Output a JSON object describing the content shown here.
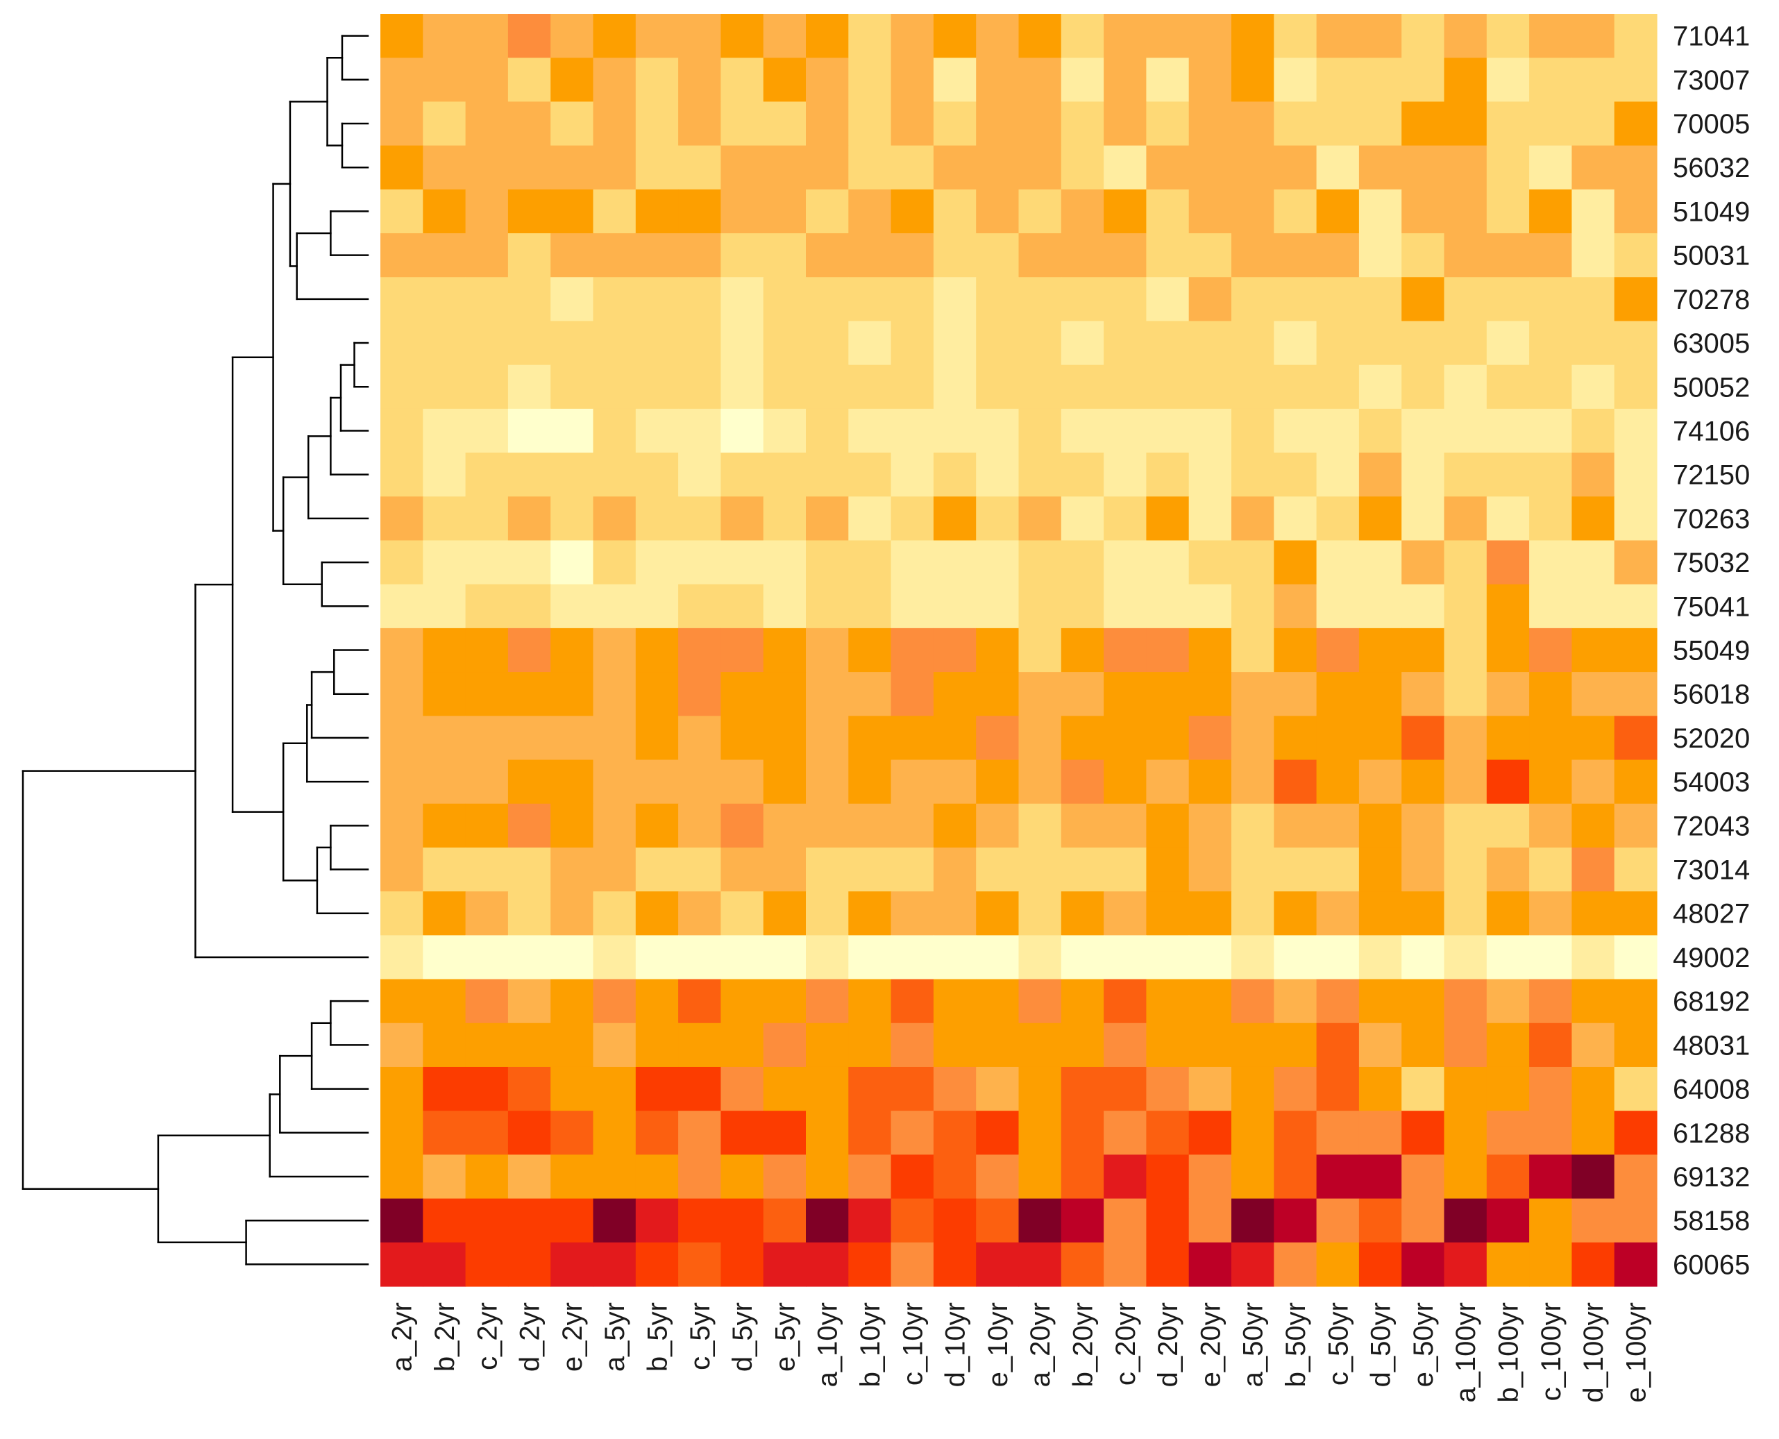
{
  "chart_data": {
    "type": "heatmap",
    "title": "",
    "xlabel": "",
    "ylabel": "",
    "grid": false,
    "legend": "none",
    "row_dendrogram": true,
    "palette": {
      "1": "#ffffcc",
      "2": "#ffeda0",
      "3": "#fed976",
      "4": "#feb24c",
      "5": "#fd9f00",
      "6": "#fd8d3c",
      "7": "#fc6010",
      "8": "#fc3c00",
      "9": "#e31a1c",
      "10": "#bd0026",
      "11": "#800026"
    },
    "columns": [
      "a_2yr",
      "b_2yr",
      "c_2yr",
      "d_2yr",
      "e_2yr",
      "a_5yr",
      "b_5yr",
      "c_5yr",
      "d_5yr",
      "e_5yr",
      "a_10yr",
      "b_10yr",
      "c_10yr",
      "d_10yr",
      "e_10yr",
      "a_20yr",
      "b_20yr",
      "c_20yr",
      "d_20yr",
      "e_20yr",
      "a_50yr",
      "b_50yr",
      "c_50yr",
      "d_50yr",
      "e_50yr",
      "a_100yr",
      "b_100yr",
      "c_100yr",
      "d_100yr",
      "e_100yr"
    ],
    "rows": [
      "71041",
      "73007",
      "70005",
      "56032",
      "51049",
      "50031",
      "70278",
      "63005",
      "50052",
      "74106",
      "72150",
      "70263",
      "75032",
      "75041",
      "55049",
      "56018",
      "52020",
      "54003",
      "72043",
      "73014",
      "48027",
      "49002",
      "68192",
      "48031",
      "64008",
      "61288",
      "69132",
      "58158",
      "60065"
    ],
    "values": [
      [
        5,
        4,
        4,
        6,
        4,
        5,
        4,
        4,
        5,
        4,
        5,
        3,
        4,
        5,
        4,
        5,
        3,
        4,
        4,
        4,
        5,
        3,
        4,
        4,
        3,
        4,
        3,
        4,
        4,
        3
      ],
      [
        4,
        4,
        4,
        3,
        5,
        4,
        3,
        4,
        3,
        5,
        4,
        3,
        4,
        2,
        4,
        4,
        2,
        4,
        2,
        4,
        5,
        2,
        3,
        3,
        3,
        5,
        2,
        3,
        3,
        3
      ],
      [
        4,
        3,
        4,
        4,
        3,
        4,
        3,
        4,
        3,
        3,
        4,
        3,
        4,
        3,
        4,
        4,
        3,
        4,
        3,
        4,
        4,
        3,
        3,
        3,
        5,
        5,
        3,
        3,
        3,
        5
      ],
      [
        5,
        4,
        4,
        4,
        4,
        4,
        3,
        3,
        4,
        4,
        4,
        3,
        3,
        4,
        4,
        4,
        3,
        2,
        4,
        4,
        4,
        4,
        2,
        4,
        4,
        4,
        3,
        2,
        4,
        4
      ],
      [
        3,
        5,
        4,
        5,
        5,
        3,
        5,
        5,
        4,
        4,
        3,
        4,
        5,
        3,
        4,
        3,
        4,
        5,
        3,
        4,
        4,
        3,
        5,
        2,
        4,
        4,
        3,
        5,
        2,
        4
      ],
      [
        4,
        4,
        4,
        3,
        4,
        4,
        4,
        4,
        3,
        3,
        4,
        4,
        4,
        3,
        3,
        4,
        4,
        4,
        3,
        3,
        4,
        4,
        4,
        2,
        3,
        4,
        4,
        4,
        2,
        3
      ],
      [
        3,
        3,
        3,
        3,
        2,
        3,
        3,
        3,
        2,
        3,
        3,
        3,
        3,
        2,
        3,
        3,
        3,
        3,
        2,
        4,
        3,
        3,
        3,
        3,
        5,
        3,
        3,
        3,
        3,
        5
      ],
      [
        3,
        3,
        3,
        3,
        3,
        3,
        3,
        3,
        2,
        3,
        3,
        2,
        3,
        2,
        3,
        3,
        2,
        3,
        3,
        3,
        3,
        2,
        3,
        3,
        3,
        3,
        2,
        3,
        3,
        3
      ],
      [
        3,
        3,
        3,
        2,
        3,
        3,
        3,
        3,
        2,
        3,
        3,
        3,
        3,
        2,
        3,
        3,
        3,
        3,
        3,
        3,
        3,
        3,
        3,
        2,
        3,
        2,
        3,
        3,
        2,
        3
      ],
      [
        3,
        2,
        2,
        1,
        1,
        3,
        2,
        2,
        1,
        2,
        3,
        2,
        2,
        2,
        2,
        3,
        2,
        2,
        2,
        2,
        3,
        2,
        2,
        3,
        2,
        2,
        2,
        2,
        3,
        2
      ],
      [
        3,
        2,
        3,
        3,
        3,
        3,
        3,
        2,
        3,
        3,
        3,
        3,
        2,
        3,
        2,
        3,
        3,
        2,
        3,
        2,
        3,
        3,
        2,
        4,
        2,
        3,
        3,
        3,
        4,
        2
      ],
      [
        4,
        3,
        3,
        4,
        3,
        4,
        3,
        3,
        4,
        3,
        4,
        2,
        3,
        5,
        3,
        4,
        2,
        3,
        5,
        2,
        4,
        2,
        3,
        5,
        2,
        4,
        2,
        3,
        5,
        2
      ],
      [
        3,
        2,
        2,
        2,
        1,
        3,
        2,
        2,
        2,
        2,
        3,
        3,
        2,
        2,
        2,
        3,
        3,
        2,
        2,
        3,
        3,
        5,
        2,
        2,
        4,
        3,
        6,
        2,
        2,
        4
      ],
      [
        2,
        2,
        3,
        3,
        2,
        2,
        2,
        3,
        3,
        2,
        3,
        3,
        2,
        2,
        2,
        3,
        3,
        2,
        2,
        2,
        3,
        4,
        2,
        2,
        2,
        3,
        5,
        2,
        2,
        2
      ],
      [
        4,
        5,
        5,
        6,
        5,
        4,
        5,
        6,
        6,
        5,
        4,
        5,
        6,
        6,
        5,
        3,
        5,
        6,
        6,
        5,
        3,
        5,
        6,
        5,
        5,
        3,
        5,
        6,
        5,
        5
      ],
      [
        4,
        5,
        5,
        5,
        5,
        4,
        5,
        6,
        5,
        5,
        4,
        4,
        6,
        5,
        5,
        4,
        4,
        5,
        5,
        5,
        4,
        4,
        5,
        5,
        4,
        3,
        4,
        5,
        4,
        4
      ],
      [
        4,
        4,
        4,
        4,
        4,
        4,
        5,
        4,
        5,
        5,
        4,
        5,
        5,
        5,
        6,
        4,
        5,
        5,
        5,
        6,
        4,
        5,
        5,
        5,
        7,
        4,
        5,
        5,
        5,
        7
      ],
      [
        4,
        4,
        4,
        5,
        5,
        4,
        4,
        4,
        4,
        5,
        4,
        5,
        4,
        4,
        5,
        4,
        6,
        5,
        4,
        5,
        4,
        7,
        5,
        4,
        5,
        4,
        8,
        5,
        4,
        5
      ],
      [
        4,
        5,
        5,
        6,
        5,
        4,
        5,
        4,
        6,
        4,
        4,
        4,
        4,
        5,
        4,
        3,
        4,
        4,
        5,
        4,
        3,
        4,
        4,
        5,
        4,
        3,
        3,
        4,
        5,
        4
      ],
      [
        4,
        3,
        3,
        3,
        4,
        4,
        3,
        3,
        4,
        4,
        3,
        3,
        3,
        4,
        3,
        3,
        3,
        3,
        5,
        4,
        3,
        3,
        3,
        5,
        4,
        3,
        4,
        3,
        6,
        3
      ],
      [
        3,
        5,
        4,
        3,
        4,
        3,
        5,
        4,
        3,
        5,
        3,
        5,
        4,
        4,
        5,
        3,
        5,
        4,
        5,
        5,
        3,
        5,
        4,
        5,
        5,
        3,
        5,
        4,
        5,
        5
      ],
      [
        2,
        1,
        1,
        1,
        1,
        2,
        1,
        1,
        1,
        1,
        2,
        1,
        1,
        1,
        1,
        2,
        1,
        1,
        1,
        1,
        2,
        1,
        1,
        2,
        1,
        2,
        1,
        1,
        2,
        1
      ],
      [
        5,
        5,
        6,
        4,
        5,
        6,
        5,
        7,
        5,
        5,
        6,
        5,
        7,
        5,
        5,
        6,
        5,
        7,
        5,
        5,
        6,
        4,
        6,
        5,
        5,
        6,
        4,
        6,
        5,
        5
      ],
      [
        4,
        5,
        5,
        5,
        5,
        4,
        5,
        5,
        5,
        6,
        5,
        5,
        6,
        5,
        5,
        5,
        5,
        6,
        5,
        5,
        5,
        5,
        7,
        4,
        5,
        6,
        5,
        7,
        4,
        5
      ],
      [
        5,
        8,
        8,
        7,
        5,
        5,
        8,
        8,
        6,
        5,
        5,
        7,
        7,
        6,
        4,
        5,
        7,
        7,
        6,
        4,
        5,
        6,
        7,
        5,
        3,
        5,
        5,
        6,
        5,
        3
      ],
      [
        5,
        7,
        7,
        8,
        7,
        5,
        7,
        6,
        8,
        8,
        5,
        7,
        6,
        7,
        8,
        5,
        7,
        6,
        7,
        8,
        5,
        7,
        6,
        6,
        8,
        5,
        6,
        6,
        5,
        8
      ],
      [
        5,
        4,
        5,
        4,
        5,
        5,
        5,
        6,
        5,
        6,
        5,
        6,
        8,
        7,
        6,
        5,
        7,
        9,
        8,
        6,
        5,
        7,
        10,
        10,
        6,
        5,
        7,
        10,
        11,
        6
      ],
      [
        11,
        8,
        8,
        8,
        8,
        11,
        9,
        8,
        8,
        7,
        11,
        9,
        7,
        8,
        7,
        11,
        10,
        6,
        8,
        6,
        11,
        10,
        6,
        7,
        6,
        11,
        10,
        5,
        6,
        6
      ],
      [
        9,
        9,
        8,
        8,
        9,
        9,
        8,
        7,
        8,
        9,
        9,
        8,
        6,
        8,
        9,
        9,
        7,
        6,
        8,
        10,
        9,
        6,
        5,
        8,
        10,
        9,
        5,
        5,
        8,
        10
      ]
    ],
    "dendrogram": [
      [
        "71041",
        "73007",
        38
      ],
      [
        "70005",
        "56032",
        38
      ],
      [
        "m1",
        "m2",
        60
      ],
      [
        "51049",
        "50031",
        55
      ],
      [
        "m4",
        "70278",
        105
      ],
      [
        "m3",
        "m5",
        115
      ],
      [
        "63005",
        "50052",
        20
      ],
      [
        "m7",
        "74106",
        40
      ],
      [
        "m8",
        "72150",
        55
      ],
      [
        "m9",
        "70263",
        88
      ],
      [
        "75032",
        "75041",
        68
      ],
      [
        "m10",
        "m11",
        125
      ],
      [
        "m6",
        "m12",
        140
      ],
      [
        "55049",
        "56018",
        50
      ],
      [
        "m14",
        "52020",
        83
      ],
      [
        "m15",
        "54003",
        90
      ],
      [
        "72043",
        "73014",
        55
      ],
      [
        "m17",
        "48027",
        75
      ],
      [
        "m16",
        "m18",
        125
      ],
      [
        "m13",
        "m19",
        200
      ],
      [
        "m20",
        "49002",
        255
      ],
      [
        "68192",
        "48031",
        55
      ],
      [
        "m22",
        "64008",
        83
      ],
      [
        "m23",
        "61288",
        130
      ],
      [
        "m24",
        "69132",
        145
      ],
      [
        "58158",
        "60065",
        180
      ],
      [
        "m25",
        "m26",
        310
      ],
      [
        "m21",
        "m27",
        510
      ]
    ]
  }
}
